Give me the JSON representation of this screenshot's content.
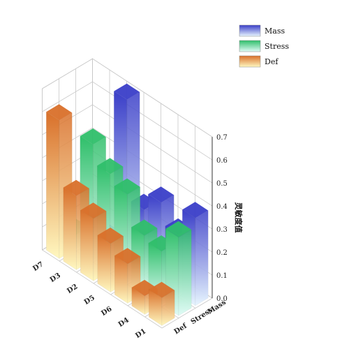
{
  "chart_data": {
    "type": "bar3d",
    "categories": [
      "D7",
      "D3",
      "D2",
      "D5",
      "D6",
      "D4",
      "D1"
    ],
    "series": [
      {
        "name": "Mass",
        "values": [
          0.04,
          0.04,
          0.7,
          0.27,
          0.35,
          0.26,
          0.38
        ]
      },
      {
        "name": "Stress",
        "values": [
          0.06,
          0.5,
          0.42,
          0.38,
          0.25,
          0.23,
          0.34
        ]
      },
      {
        "name": "Def",
        "values": [
          0.6,
          0.32,
          0.27,
          0.21,
          0.17,
          0.08,
          0.12
        ]
      }
    ],
    "depth_labels": [
      "Def",
      "Stress",
      "Mass"
    ],
    "zlabel": "灵敏度值",
    "zlim": [
      0,
      0.7
    ],
    "zticks": [
      "0.0",
      "0.1",
      "0.2",
      "0.3",
      "0.4",
      "0.5",
      "0.6",
      "0.7"
    ],
    "legend_position": "top-right",
    "colors": {
      "Mass": {
        "top": "#3a3ec8",
        "bottom": "#e8f6ff"
      },
      "Stress": {
        "top": "#2fbf6a",
        "bottom": "#e0fbf6"
      },
      "Def": {
        "top": "#d9702a",
        "bottom": "#fff8c0"
      }
    }
  }
}
